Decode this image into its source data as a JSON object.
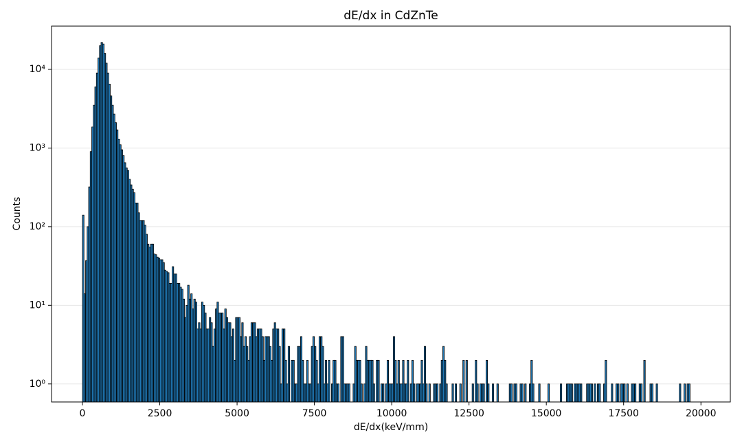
{
  "chart_data": {
    "type": "histogram",
    "title": "dE/dx in CdZnTe",
    "x_label": "dE/dx(keV/mm)",
    "y_label": "Counts",
    "bins": [
      0,
      50,
      100,
      150,
      200,
      250,
      300,
      350,
      400,
      450,
      500,
      550,
      600,
      650,
      700,
      750,
      800,
      850,
      900,
      950,
      1000,
      1050,
      1100,
      1150,
      1200,
      1250,
      1300,
      1350,
      1400,
      1450,
      1500,
      1550,
      1600,
      1650,
      1700,
      1750,
      1800,
      1850,
      1900,
      1950,
      2000,
      2050,
      2100,
      2150,
      2200,
      2250,
      2300,
      2350,
      2400,
      2450,
      2500,
      2550,
      2600,
      2650,
      2700,
      2750,
      2800,
      2850,
      2900,
      2950,
      3000,
      3050,
      3100,
      3150,
      3200,
      3250,
      3300,
      3350,
      3400,
      3450,
      3500,
      3550,
      3600,
      3650,
      3700,
      3750,
      3800,
      3850,
      3900,
      3950,
      4000,
      4050,
      4100,
      4150,
      4200,
      4250,
      4300,
      4350,
      4400,
      4450,
      4500,
      4550,
      4600,
      4650,
      4700,
      4750,
      4800,
      4850,
      4900,
      4950,
      5000,
      5050,
      5100,
      5150,
      5200,
      5250,
      5300,
      5350,
      5400,
      5450,
      5500,
      5550,
      5600,
      5650,
      5700,
      5750,
      5800,
      5850,
      5900,
      5950,
      6000,
      6050,
      6100,
      6150,
      6200,
      6250,
      6300,
      6350,
      6400,
      6450,
      6500,
      6550,
      6600,
      6650,
      6700,
      6750,
      6800,
      6850,
      6900,
      6950,
      7000,
      7050,
      7100,
      7150,
      7200,
      7250,
      7300,
      7350,
      7400,
      7450,
      7500,
      7550,
      7600,
      7650,
      7700,
      7750,
      7800,
      7850,
      7900,
      7950,
      8000,
      8050,
      8100,
      8150,
      8200,
      8250,
      8300,
      8350,
      8400,
      8450,
      8500,
      8550,
      8600,
      8650,
      8700,
      8750,
      8800,
      8850,
      8900,
      8950,
      9000,
      9050,
      9100,
      9150,
      9200,
      9250,
      9300,
      9350,
      9400,
      9450,
      9500,
      9550,
      9600,
      9650,
      9700,
      9750,
      9800,
      9850,
      9900,
      9950,
      10000,
      10050,
      10100,
      10150,
      10200,
      10250,
      10300,
      10350,
      10400,
      10450,
      10500,
      10550,
      10600,
      10650,
      10700,
      10750,
      10800,
      10850,
      10900,
      10950,
      11000,
      11050,
      11100,
      11150,
      11200,
      11250,
      11300,
      11350,
      11400,
      11450,
      11500,
      11550,
      11600,
      11650,
      11700,
      11750,
      11800,
      11850,
      11900,
      11950,
      12000,
      12050,
      12100,
      12150,
      12200,
      12250,
      12300,
      12350,
      12400,
      12450,
      12500,
      12550,
      12600,
      12650,
      12700,
      12750,
      12800,
      12850,
      12900,
      12950,
      13000,
      13050,
      13100,
      13150,
      13200,
      13250,
      13300,
      13350,
      13400,
      13450,
      13500,
      13550,
      13600,
      13650,
      13700,
      13750,
      13800,
      13850,
      13900,
      13950,
      14000,
      14050,
      14100,
      14150,
      14200,
      14250,
      14300,
      14350,
      14400,
      14450,
      14500,
      14550,
      14600,
      14650,
      14700,
      14750,
      14800,
      14850,
      14900,
      14950,
      15000,
      15050,
      15100,
      15150,
      15200,
      15250,
      15300,
      15350,
      15400,
      15450,
      15500,
      15550,
      15600,
      15650,
      15700,
      15750,
      15800,
      15850,
      15900,
      15950,
      16000,
      16050,
      16100,
      16150,
      16200,
      16250,
      16300,
      16350,
      16400,
      16450,
      16500,
      16550,
      16600,
      16650,
      16700,
      16750,
      16800,
      16850,
      16900,
      16950,
      17000,
      17050,
      17100,
      17150,
      17200,
      17250,
      17300,
      17350,
      17400,
      17450,
      17500,
      17550,
      17600,
      17650,
      17700,
      17750,
      17800,
      17850,
      17900,
      17950,
      18000,
      18050,
      18100,
      18150,
      18200,
      18250,
      18300,
      18350,
      18400,
      18450,
      18500,
      18550,
      18600,
      18650,
      18700,
      18750,
      18800,
      18850,
      18900,
      18950,
      19000,
      19050,
      19100,
      19150,
      19200,
      19250,
      19300,
      19350,
      19400,
      19450,
      19500,
      19550,
      19600,
      19650,
      19700,
      19750
    ],
    "values": [
      140,
      14,
      37,
      100,
      320,
      900,
      1850,
      3500,
      6000,
      9000,
      14000,
      20000,
      22000,
      21000,
      16000,
      12000,
      9000,
      6500,
      4600,
      3500,
      2700,
      2100,
      1700,
      1300,
      1100,
      950,
      800,
      650,
      560,
      520,
      400,
      340,
      300,
      270,
      200,
      200,
      150,
      120,
      120,
      120,
      105,
      80,
      60,
      55,
      60,
      60,
      45,
      44,
      41,
      40,
      38,
      38,
      35,
      28,
      27,
      26,
      19,
      19,
      31,
      25,
      25,
      19,
      19,
      17,
      16,
      12,
      7,
      10,
      18,
      12,
      14,
      9,
      12,
      11,
      5,
      6,
      5,
      11,
      10,
      8,
      5,
      5,
      7,
      6,
      3,
      5,
      9,
      11,
      8,
      8,
      8,
      5,
      9,
      7,
      6,
      6,
      4,
      5,
      2,
      7,
      7,
      7,
      4,
      6,
      3,
      4,
      3,
      2,
      4,
      6,
      6,
      6,
      4,
      5,
      5,
      5,
      4,
      2,
      4,
      4,
      4,
      3,
      2,
      5,
      6,
      5,
      5,
      3,
      1,
      5,
      5,
      2,
      1,
      3,
      0,
      2,
      2,
      1,
      1,
      3,
      3,
      4,
      2,
      1,
      1,
      2,
      1,
      1,
      3,
      4,
      3,
      2,
      1,
      4,
      4,
      3,
      1,
      2,
      1,
      2,
      0,
      1,
      2,
      2,
      1,
      1,
      0,
      4,
      4,
      1,
      1,
      1,
      1,
      0,
      0,
      1,
      3,
      2,
      2,
      2,
      1,
      0,
      1,
      3,
      2,
      2,
      2,
      2,
      1,
      0,
      2,
      2,
      0,
      1,
      1,
      0,
      1,
      2,
      1,
      1,
      1,
      4,
      2,
      1,
      2,
      1,
      1,
      2,
      1,
      1,
      2,
      0,
      1,
      2,
      1,
      0,
      1,
      1,
      1,
      2,
      1,
      3,
      1,
      0,
      1,
      0,
      0,
      1,
      1,
      1,
      0,
      1,
      2,
      3,
      2,
      1,
      0,
      0,
      0,
      1,
      0,
      1,
      0,
      0,
      1,
      0,
      2,
      0,
      2,
      0,
      0,
      0,
      1,
      0,
      2,
      1,
      0,
      1,
      1,
      1,
      0,
      2,
      1,
      0,
      0,
      1,
      0,
      0,
      1,
      0,
      0,
      0,
      0,
      0,
      0,
      0,
      1,
      1,
      0,
      1,
      1,
      0,
      0,
      1,
      1,
      0,
      1,
      0,
      0,
      1,
      2,
      1,
      0,
      0,
      0,
      1,
      0,
      0,
      0,
      0,
      0,
      1,
      0,
      0,
      0,
      0,
      0,
      0,
      0,
      1,
      0,
      0,
      0,
      1,
      1,
      1,
      1,
      0,
      1,
      1,
      1,
      1,
      1,
      0,
      0,
      0,
      1,
      1,
      1,
      1,
      0,
      1,
      0,
      1,
      1,
      0,
      0,
      1,
      2,
      0,
      0,
      0,
      1,
      0,
      0,
      1,
      1,
      0,
      1,
      1,
      1,
      0,
      1,
      0,
      0,
      1,
      1,
      1,
      0,
      0,
      1,
      1,
      0,
      2,
      0,
      0,
      0,
      1,
      1,
      0,
      0,
      1,
      0,
      0,
      0,
      0,
      0,
      0,
      0,
      0,
      0,
      0,
      0,
      0,
      0,
      0,
      1,
      0,
      0,
      1,
      0,
      1,
      1,
      0,
      0
    ],
    "color": "#1f77b4",
    "edgecolor": "#000000",
    "log_y": true,
    "grid": true,
    "xlim": [
      -1000,
      20950
    ],
    "xticks": [
      0,
      2500,
      5000,
      7500,
      10000,
      12500,
      15000,
      17500,
      20000
    ],
    "ylim": [
      0.59,
      35500
    ],
    "yticks": [
      {
        "value": 1,
        "label": "10⁰"
      },
      {
        "value": 10,
        "label": "10¹"
      },
      {
        "value": 100,
        "label": "10²"
      },
      {
        "value": 1000,
        "label": "10³"
      },
      {
        "value": 10000,
        "label": "10⁴"
      }
    ]
  }
}
